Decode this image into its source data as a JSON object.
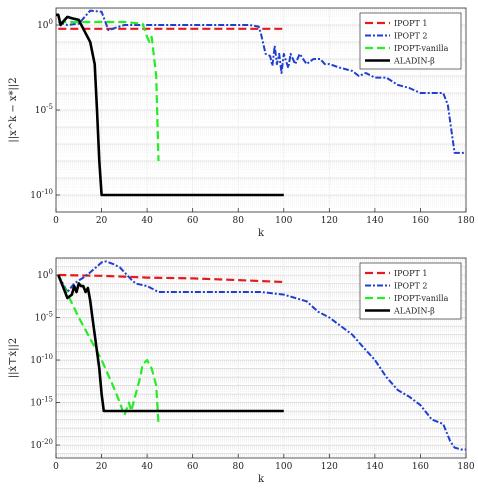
{
  "chart_data": [
    {
      "type": "line",
      "ylabel": "||x^k − x*||2",
      "xlabel": "k",
      "yscale": "log",
      "xlim": [
        0,
        180
      ],
      "ylim": [
        1e-11,
        10
      ],
      "xticks": [
        "0",
        "20",
        "40",
        "60",
        "80",
        "100",
        "120",
        "140",
        "160",
        "180"
      ],
      "yticks": [
        {
          "value": 1,
          "label": "10^0"
        },
        {
          "value": 1e-05,
          "label": "10^-5"
        },
        {
          "value": 1e-10,
          "label": "10^-10"
        }
      ],
      "grid": true,
      "legend_position": "top-right",
      "series": [
        {
          "name": "IPOPT 1",
          "color": "#e41a1c",
          "dash": "8,4",
          "width": 2.2,
          "points": [
            [
              1,
              0.6
            ],
            [
              10,
              0.6
            ],
            [
              30,
              0.6
            ],
            [
              60,
              0.6
            ],
            [
              80,
              0.6
            ],
            [
              100,
              0.6
            ]
          ]
        },
        {
          "name": "IPOPT 2",
          "color": "#1f3fd0",
          "dash": "6,2,2,2",
          "width": 2,
          "points": [
            [
              1,
              1.5
            ],
            [
              5,
              1
            ],
            [
              10,
              1.2
            ],
            [
              15,
              7
            ],
            [
              20,
              6
            ],
            [
              23,
              0.5
            ],
            [
              30,
              1
            ],
            [
              60,
              1
            ],
            [
              85,
              1
            ],
            [
              89,
              0.8
            ],
            [
              90,
              0.3
            ],
            [
              92,
              0.02
            ],
            [
              94,
              0.015
            ],
            [
              95,
              0.004
            ],
            [
              96,
              0.06
            ],
            [
              97,
              0.005
            ],
            [
              98,
              0.02
            ],
            [
              99,
              0.0015
            ],
            [
              100,
              0.02
            ],
            [
              102,
              0.003
            ],
            [
              103,
              0.02
            ],
            [
              105,
              0.005
            ],
            [
              107,
              0.02
            ],
            [
              110,
              0.005
            ],
            [
              113,
              0.01
            ],
            [
              116,
              0.01
            ],
            [
              118,
              0.005
            ],
            [
              120,
              0.005
            ],
            [
              125,
              0.003
            ],
            [
              130,
              0.002
            ],
            [
              133,
              0.001
            ],
            [
              136,
              0.0015
            ],
            [
              140,
              0.0008
            ],
            [
              145,
              0.0008
            ],
            [
              150,
              0.0003
            ],
            [
              155,
              0.0002
            ],
            [
              160,
              0.0001
            ],
            [
              165,
              0.0001
            ],
            [
              170,
              0.0001
            ],
            [
              172,
              2e-05
            ],
            [
              175,
              3e-08
            ],
            [
              177,
              3e-08
            ],
            [
              180,
              3e-08
            ]
          ]
        },
        {
          "name": "IPOPT-vanilla",
          "color": "#22ee22",
          "dash": "8,4",
          "width": 2.2,
          "points": [
            [
              1,
              1.5
            ],
            [
              5,
              1.5
            ],
            [
              30,
              1.5
            ],
            [
              38,
              1.2
            ],
            [
              40,
              0.2
            ],
            [
              41,
              0.1
            ],
            [
              42,
              0.2
            ],
            [
              44,
              0.001
            ],
            [
              45,
              1e-08
            ]
          ]
        },
        {
          "name": "ALADIN-β",
          "color": "#000000",
          "dash": "",
          "width": 2.6,
          "points": [
            [
              0,
              4
            ],
            [
              1,
              4
            ],
            [
              2,
              1
            ],
            [
              3,
              1.5
            ],
            [
              5,
              3
            ],
            [
              7,
              2.5
            ],
            [
              10,
              2
            ],
            [
              12,
              0.6
            ],
            [
              15,
              0.1
            ],
            [
              17,
              0.005
            ],
            [
              18,
              1e-05
            ],
            [
              19,
              1e-08
            ],
            [
              20,
              1e-10
            ],
            [
              22,
              1e-10
            ],
            [
              60,
              1e-10
            ],
            [
              100,
              1e-10
            ]
          ]
        }
      ]
    },
    {
      "type": "line",
      "ylabel": "||ẋ⊤ẋ||2",
      "xlabel": "k",
      "yscale": "log",
      "xlim": [
        0,
        180
      ],
      "ylim": [
        3e-22,
        100
      ],
      "xticks": [
        "0",
        "20",
        "40",
        "60",
        "80",
        "100",
        "120",
        "140",
        "160",
        "180"
      ],
      "yticks": [
        {
          "value": 1,
          "label": "10^0"
        },
        {
          "value": 1e-05,
          "label": "10^-5"
        },
        {
          "value": 1e-10,
          "label": "10^-10"
        },
        {
          "value": 1e-15,
          "label": "10^-15"
        },
        {
          "value": 1e-20,
          "label": "10^-20"
        }
      ],
      "grid": true,
      "legend_position": "top-right",
      "series": [
        {
          "name": "IPOPT 1",
          "color": "#e41a1c",
          "dash": "8,4",
          "width": 2.2,
          "points": [
            [
              1,
              1
            ],
            [
              20,
              0.8
            ],
            [
              40,
              0.5
            ],
            [
              60,
              0.4
            ],
            [
              80,
              0.25
            ],
            [
              100,
              0.15
            ]
          ]
        },
        {
          "name": "IPOPT 2",
          "color": "#1f3fd0",
          "dash": "6,2,2,2",
          "width": 2,
          "points": [
            [
              1,
              1
            ],
            [
              5,
              0.01
            ],
            [
              8,
              0.1
            ],
            [
              12,
              0.5
            ],
            [
              15,
              2
            ],
            [
              18,
              10
            ],
            [
              20,
              30
            ],
            [
              22,
              40
            ],
            [
              25,
              20
            ],
            [
              28,
              8
            ],
            [
              33,
              0.3
            ],
            [
              35,
              0.1
            ],
            [
              40,
              0.05
            ],
            [
              45,
              0.01
            ],
            [
              50,
              0.01
            ],
            [
              90,
              0.01
            ],
            [
              100,
              0.005
            ],
            [
              110,
              0.0008
            ],
            [
              115,
              5e-05
            ],
            [
              120,
              1e-05
            ],
            [
              125,
              1e-06
            ],
            [
              130,
              1e-07
            ],
            [
              135,
              3e-09
            ],
            [
              140,
              1e-10
            ],
            [
              145,
              1e-12
            ],
            [
              150,
              3e-14
            ],
            [
              155,
              5e-15
            ],
            [
              160,
              5e-16
            ],
            [
              165,
              1e-17
            ],
            [
              170,
              3e-18
            ],
            [
              173,
              3e-20
            ],
            [
              175,
              5e-21
            ],
            [
              178,
              3e-21
            ],
            [
              180,
              3e-21
            ]
          ]
        },
        {
          "name": "IPOPT-vanilla",
          "color": "#22ee22",
          "dash": "8,4",
          "width": 2.2,
          "points": [
            [
              1,
              1
            ],
            [
              10,
              1e-05
            ],
            [
              20,
              1e-10
            ],
            [
              25,
              1e-13
            ],
            [
              28,
              1e-15
            ],
            [
              30,
              3e-17
            ],
            [
              32,
              1e-15
            ],
            [
              33,
              1e-16
            ],
            [
              35,
              1e-14
            ],
            [
              37,
              1e-12
            ],
            [
              38,
              3e-11
            ],
            [
              40,
              1e-10
            ],
            [
              41,
              3e-11
            ],
            [
              42,
              1e-11
            ],
            [
              44,
              1e-13
            ],
            [
              45,
              3e-18
            ]
          ]
        },
        {
          "name": "ALADIN-β",
          "color": "#000000",
          "dash": "",
          "width": 2.6,
          "points": [
            [
              1,
              1
            ],
            [
              3,
              0.05
            ],
            [
              5,
              0.002
            ],
            [
              7,
              0.005
            ],
            [
              8,
              0.05
            ],
            [
              9,
              0.01
            ],
            [
              10,
              0.1
            ],
            [
              11,
              0.05
            ],
            [
              12,
              0.05
            ],
            [
              13,
              0.01
            ],
            [
              14,
              0.03
            ],
            [
              15,
              0.001
            ],
            [
              16,
              1e-05
            ],
            [
              18,
              1e-09
            ],
            [
              19,
              1e-11
            ],
            [
              20,
              1e-14
            ],
            [
              21,
              1e-16
            ],
            [
              60,
              1e-16
            ],
            [
              100,
              1e-16
            ]
          ]
        }
      ]
    }
  ]
}
